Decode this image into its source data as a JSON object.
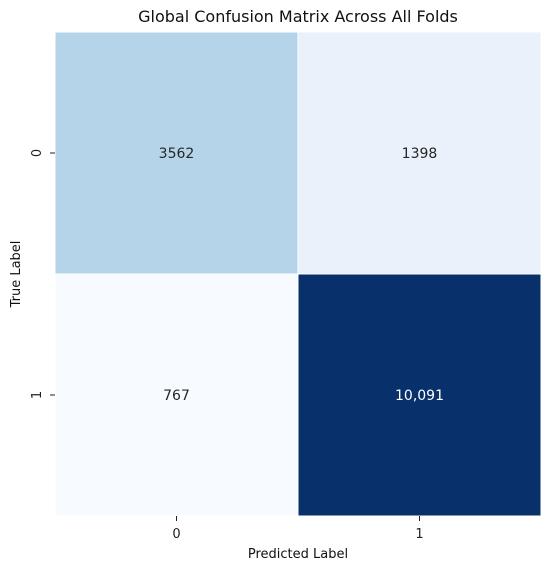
{
  "chart_data": {
    "type": "heatmap",
    "title": "Global Confusion Matrix Across All Folds",
    "xlabel": "Predicted Label",
    "ylabel": "True Label",
    "x_categories": [
      "0",
      "1"
    ],
    "y_categories": [
      "0",
      "1"
    ],
    "values": [
      [
        3562,
        1398
      ],
      [
        767,
        10091
      ]
    ],
    "cell_labels": [
      [
        "3562",
        "1398"
      ],
      [
        "767",
        "10,091"
      ]
    ],
    "colormap": "Blues",
    "colorbar": false,
    "grid": false
  }
}
